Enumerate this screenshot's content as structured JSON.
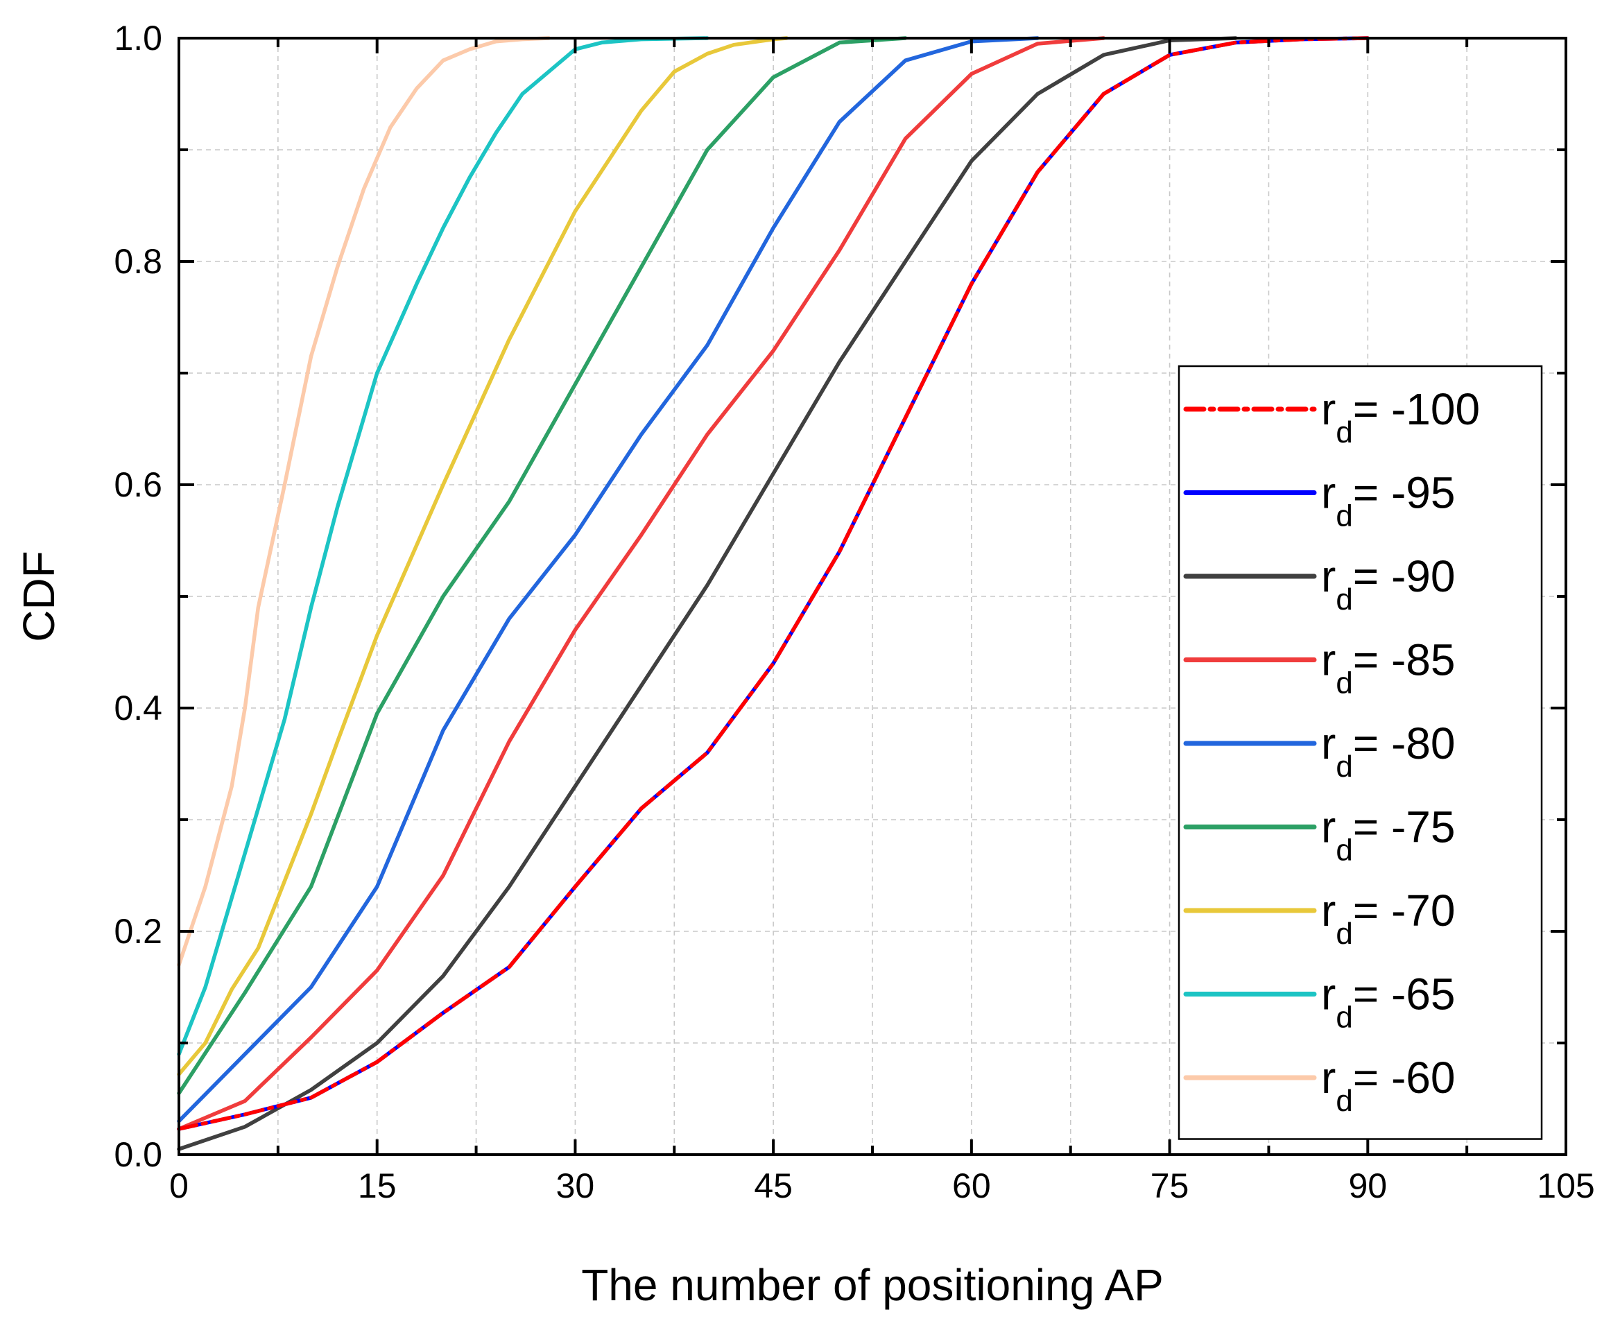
{
  "chart_data": {
    "type": "line",
    "title": "",
    "xlabel": "The number of positioning AP",
    "ylabel": "CDF",
    "xlim": [
      0,
      105
    ],
    "ylim": [
      0,
      1.0
    ],
    "xticks": [
      0,
      15,
      30,
      45,
      60,
      75,
      90,
      105
    ],
    "yticks": [
      0.0,
      0.2,
      0.4,
      0.6,
      0.8,
      1.0
    ],
    "xtick_labels": [
      "0",
      "15",
      "30",
      "45",
      "60",
      "75",
      "90",
      "105"
    ],
    "ytick_labels": [
      "0.0",
      "0.2",
      "0.4",
      "0.6",
      "0.8",
      "1.0"
    ],
    "grid": true,
    "legend_position": "right",
    "series": [
      {
        "name": "r_d= -100",
        "symbol": "r",
        "sub": "d",
        "value_text": "= -100",
        "color": "#ff0000",
        "dash": "dashdot",
        "x": [
          0,
          5,
          10,
          15,
          20,
          25,
          30,
          35,
          40,
          45,
          50,
          55,
          60,
          65,
          70,
          75,
          80,
          85,
          90
        ],
        "y": [
          0.023,
          0.036,
          0.051,
          0.083,
          0.127,
          0.168,
          0.24,
          0.31,
          0.36,
          0.44,
          0.54,
          0.66,
          0.78,
          0.88,
          0.95,
          0.985,
          0.996,
          0.999,
          1.0
        ]
      },
      {
        "name": "r_d= -95",
        "symbol": "r",
        "sub": "d",
        "value_text": "= -95",
        "color": "#0000ff",
        "dash": "solid",
        "x": [
          0,
          5,
          10,
          15,
          20,
          25,
          30,
          35,
          40,
          45,
          50,
          55,
          60,
          65,
          70,
          75,
          80,
          85,
          90
        ],
        "y": [
          0.023,
          0.036,
          0.051,
          0.083,
          0.127,
          0.168,
          0.24,
          0.31,
          0.36,
          0.44,
          0.54,
          0.66,
          0.78,
          0.88,
          0.95,
          0.985,
          0.996,
          0.999,
          1.0
        ]
      },
      {
        "name": "r_d= -90",
        "symbol": "r",
        "sub": "d",
        "value_text": "= -90",
        "color": "#404040",
        "dash": "solid",
        "x": [
          0,
          5,
          10,
          15,
          20,
          25,
          30,
          35,
          40,
          45,
          50,
          55,
          60,
          65,
          70,
          75,
          80
        ],
        "y": [
          0.005,
          0.025,
          0.058,
          0.1,
          0.16,
          0.24,
          0.33,
          0.42,
          0.51,
          0.61,
          0.71,
          0.8,
          0.89,
          0.95,
          0.985,
          0.998,
          1.0
        ]
      },
      {
        "name": "r_d= -85",
        "symbol": "r",
        "sub": "d",
        "value_text": "= -85",
        "color": "#f03c3c",
        "dash": "solid",
        "x": [
          0,
          5,
          10,
          15,
          20,
          25,
          30,
          35,
          40,
          45,
          50,
          55,
          60,
          65,
          70
        ],
        "y": [
          0.023,
          0.048,
          0.105,
          0.165,
          0.25,
          0.37,
          0.47,
          0.555,
          0.645,
          0.72,
          0.81,
          0.91,
          0.968,
          0.995,
          1.0
        ]
      },
      {
        "name": "r_d= -80",
        "symbol": "r",
        "sub": "d",
        "value_text": "= -80",
        "color": "#2266dd",
        "dash": "solid",
        "x": [
          0,
          5,
          10,
          15,
          20,
          25,
          30,
          35,
          40,
          45,
          50,
          55,
          60,
          65
        ],
        "y": [
          0.03,
          0.09,
          0.15,
          0.24,
          0.38,
          0.48,
          0.555,
          0.645,
          0.725,
          0.83,
          0.925,
          0.98,
          0.997,
          1.0
        ]
      },
      {
        "name": "r_d= -75",
        "symbol": "r",
        "sub": "d",
        "value_text": "= -75",
        "color": "#2ca065",
        "dash": "solid",
        "x": [
          0,
          5,
          10,
          15,
          20,
          25,
          30,
          35,
          40,
          45,
          50,
          55
        ],
        "y": [
          0.055,
          0.145,
          0.24,
          0.395,
          0.5,
          0.585,
          0.69,
          0.795,
          0.9,
          0.965,
          0.996,
          1.0
        ]
      },
      {
        "name": "r_d= -70",
        "symbol": "r",
        "sub": "d",
        "value_text": "= -70",
        "color": "#e8c83a",
        "dash": "solid",
        "x": [
          0,
          2,
          4,
          6,
          8,
          10,
          12,
          15,
          20,
          25,
          30,
          35,
          37.5,
          40,
          42,
          45,
          46
        ],
        "y": [
          0.072,
          0.1,
          0.148,
          0.185,
          0.245,
          0.305,
          0.37,
          0.465,
          0.6,
          0.73,
          0.845,
          0.935,
          0.97,
          0.986,
          0.994,
          0.999,
          1.0
        ]
      },
      {
        "name": "r_d= -65",
        "symbol": "r",
        "sub": "d",
        "value_text": "= -65",
        "color": "#1cc4c4",
        "dash": "solid",
        "x": [
          0,
          2,
          4,
          6,
          8,
          10,
          12,
          15,
          18,
          20,
          22,
          24,
          26,
          28,
          30,
          32,
          35,
          40
        ],
        "y": [
          0.09,
          0.15,
          0.23,
          0.31,
          0.39,
          0.49,
          0.58,
          0.7,
          0.78,
          0.83,
          0.875,
          0.915,
          0.95,
          0.97,
          0.99,
          0.996,
          0.999,
          1.0
        ]
      },
      {
        "name": "r_d= -60",
        "symbol": "r",
        "sub": "d",
        "value_text": "= -60",
        "color": "#fccaaa",
        "dash": "solid",
        "x": [
          0,
          2,
          4,
          5,
          6,
          8,
          10,
          12,
          14,
          16,
          18,
          20,
          22,
          24,
          26,
          28
        ],
        "y": [
          0.17,
          0.24,
          0.33,
          0.4,
          0.49,
          0.6,
          0.715,
          0.795,
          0.865,
          0.92,
          0.955,
          0.98,
          0.99,
          0.997,
          0.999,
          1.0
        ]
      }
    ]
  }
}
